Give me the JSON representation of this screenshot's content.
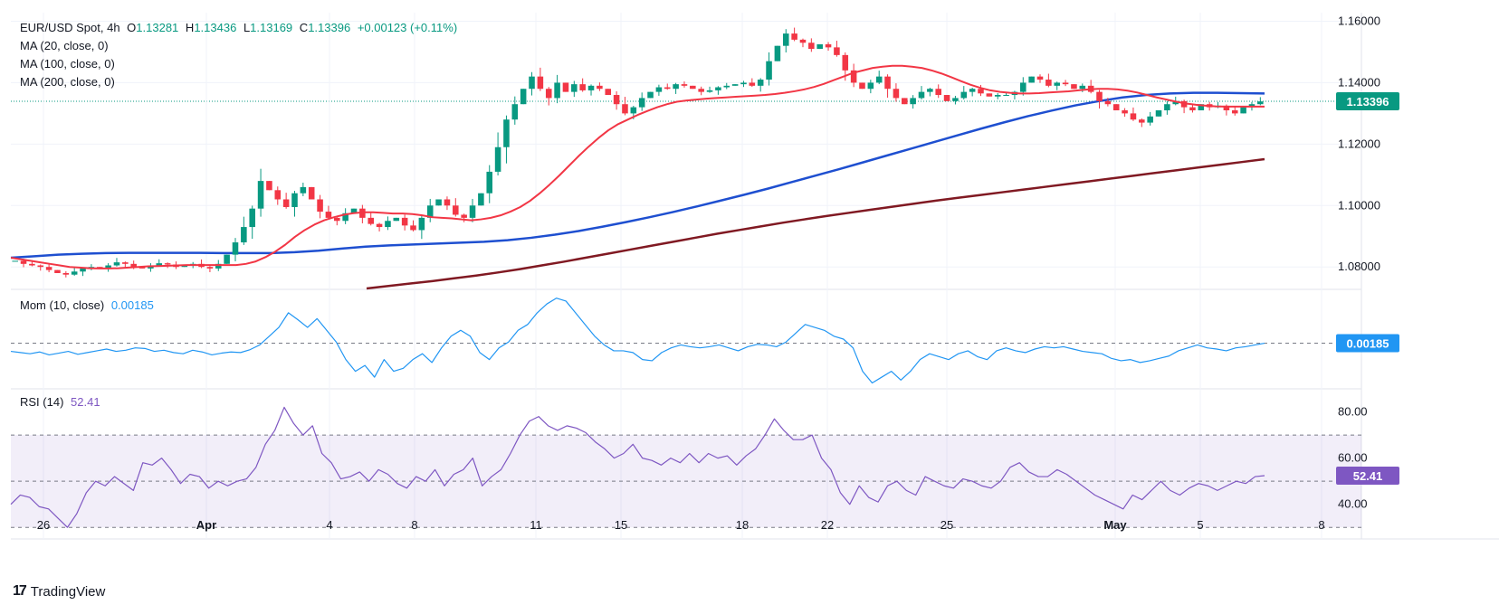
{
  "legend": {
    "symbol": "EUR/USD Spot, 4h",
    "o_label": "O",
    "o_value": "1.13281",
    "h_label": "H",
    "h_value": "1.13436",
    "l_label": "L",
    "l_value": "1.13169",
    "c_label": "C",
    "c_value": "1.13396",
    "change": "+0.00123 (+0.11%)",
    "ma20": "MA (20, close, 0)",
    "ma100": "MA (100, close, 0)",
    "ma200": "MA (200, close, 0)"
  },
  "momentum": {
    "label": "Mom (10, close)",
    "value": "0.00185"
  },
  "rsi": {
    "label": "RSI (14)",
    "value": "52.41"
  },
  "brand": {
    "name": "TradingView"
  },
  "colors": {
    "up": "#089981",
    "down": "#f23645",
    "ma20": "#f23645",
    "ma100": "#1e4fd0",
    "ma200": "#801922",
    "mom": "#2196f3",
    "rsi": "#7e57c2"
  },
  "chart_data": {
    "type": "candlestick",
    "price_axis": {
      "ticks": [
        "1.16000",
        "1.14000",
        "1.12000",
        "1.10000",
        "1.08000"
      ],
      "tick_values": [
        1.16,
        1.14,
        1.12,
        1.1,
        1.08
      ],
      "range": [
        1.0727,
        1.1628
      ],
      "current_price_label": "1.13396",
      "current_price": 1.13396
    },
    "x_axis": {
      "labels": [
        "26",
        "Apr",
        "4",
        "8",
        "11",
        "15",
        "18",
        "22",
        "25",
        "May",
        "5",
        "8"
      ]
    },
    "price_series": [
      1.082,
      1.081,
      1.0805,
      1.08,
      1.079,
      1.078,
      1.0775,
      1.0785,
      1.0795,
      1.08,
      1.0795,
      1.0805,
      1.0815,
      1.081,
      1.08,
      1.0795,
      1.0805,
      1.0812,
      1.0808,
      1.08,
      1.0805,
      1.081,
      1.08,
      1.0795,
      1.081,
      1.084,
      1.088,
      1.093,
      1.099,
      1.108,
      1.105,
      1.102,
      1.0995,
      1.104,
      1.106,
      1.102,
      1.098,
      1.096,
      1.095,
      1.0975,
      1.099,
      1.096,
      1.094,
      1.093,
      1.095,
      1.096,
      1.0935,
      1.092,
      1.096,
      1.1,
      1.102,
      1.1,
      1.097,
      1.096,
      1.1,
      1.104,
      1.111,
      1.119,
      1.128,
      1.133,
      1.138,
      1.142,
      1.138,
      1.135,
      1.14,
      1.137,
      1.1395,
      1.1375,
      1.139,
      1.138,
      1.136,
      1.133,
      1.13,
      1.132,
      1.135,
      1.137,
      1.1385,
      1.138,
      1.1395,
      1.139,
      1.138,
      1.137,
      1.1375,
      1.1385,
      1.139,
      1.1395,
      1.14,
      1.139,
      1.141,
      1.147,
      1.152,
      1.156,
      1.154,
      1.153,
      1.151,
      1.1525,
      1.1515,
      1.149,
      1.144,
      1.14,
      1.138,
      1.14,
      1.142,
      1.138,
      1.135,
      1.133,
      1.135,
      1.137,
      1.138,
      1.136,
      1.134,
      1.135,
      1.137,
      1.138,
      1.1365,
      1.1355,
      1.136,
      1.136,
      1.137,
      1.14,
      1.142,
      1.141,
      1.139,
      1.14,
      1.1395,
      1.138,
      1.139,
      1.137,
      1.134,
      1.133,
      1.131,
      1.13,
      1.128,
      1.127,
      1.129,
      1.131,
      1.133,
      1.134,
      1.132,
      1.131,
      1.133,
      1.132,
      1.1325,
      1.131,
      1.13,
      1.132,
      1.133,
      1.1339
    ],
    "ma20": [
      1.083,
      1.0825,
      1.082,
      1.0815,
      1.081,
      1.0805,
      1.08,
      1.0798,
      1.0796,
      1.0795,
      1.0795,
      1.0796,
      1.0798,
      1.08,
      1.0802,
      1.0803,
      1.0804,
      1.0805,
      1.0806,
      1.0806,
      1.0806,
      1.0806,
      1.0806,
      1.0806,
      1.081,
      1.0818,
      1.0832,
      1.085,
      1.0872,
      1.0898,
      1.092,
      1.0938,
      1.0952,
      1.0962,
      1.097,
      1.0975,
      1.0978,
      1.0978,
      1.0976,
      1.0974,
      1.0974,
      1.0972,
      1.0968,
      1.0962,
      1.096,
      1.0958,
      1.0955,
      1.0952,
      1.0955,
      1.096,
      1.0968,
      1.098,
      1.0995,
      1.1015,
      1.104,
      1.1068,
      1.1098,
      1.113,
      1.1162,
      1.1192,
      1.122,
      1.1245,
      1.1265,
      1.128,
      1.1295,
      1.1308,
      1.132,
      1.133,
      1.1338,
      1.1342,
      1.1345,
      1.1348,
      1.135,
      1.1352,
      1.1354,
      1.1356,
      1.1358,
      1.136,
      1.1363,
      1.1367,
      1.1372,
      1.1378,
      1.1386,
      1.1396,
      1.1408,
      1.142,
      1.1432,
      1.144,
      1.1448,
      1.1452,
      1.1455,
      1.1455,
      1.1452,
      1.1448,
      1.144,
      1.143,
      1.1418,
      1.1405,
      1.1393,
      1.1383,
      1.1375,
      1.137,
      1.1367,
      1.1365,
      1.1365,
      1.1366,
      1.1368,
      1.137,
      1.1372,
      1.1375,
      1.1378,
      1.138,
      1.138,
      1.1378,
      1.1374,
      1.1368,
      1.136,
      1.1352,
      1.1345,
      1.1338,
      1.1332,
      1.1328,
      1.1325,
      1.1323,
      1.1322,
      1.1322,
      1.1322,
      1.1322,
      1.1322
    ],
    "ma100": [
      1.083,
      1.0835,
      1.084,
      1.0843,
      1.0845,
      1.0846,
      1.0846,
      1.0846,
      1.0846,
      1.0845,
      1.0845,
      1.0845,
      1.0848,
      1.0853,
      1.086,
      1.0866,
      1.087,
      1.0873,
      1.0876,
      1.0879,
      1.0882,
      1.0887,
      1.0895,
      1.0905,
      1.0917,
      1.0931,
      1.0946,
      1.0962,
      1.0979,
      1.0997,
      1.1016,
      1.1035,
      1.1055,
      1.1076,
      1.1097,
      1.1118,
      1.114,
      1.1162,
      1.1184,
      1.1206,
      1.1228,
      1.125,
      1.1271,
      1.1291,
      1.1309,
      1.1326,
      1.134,
      1.1352,
      1.136,
      1.1365,
      1.1367,
      1.1367,
      1.1366,
      1.1365
    ],
    "ma200": [
      1.073,
      1.0738,
      1.0746,
      1.0754,
      1.0763,
      1.0772,
      1.0782,
      1.0793,
      1.0805,
      1.0817,
      1.083,
      1.0843,
      1.0856,
      1.0869,
      1.0882,
      1.0895,
      1.0908,
      1.092,
      1.0932,
      1.0944,
      1.0955,
      1.0966,
      1.0976,
      1.0986,
      1.0996,
      1.1006,
      1.1016,
      1.1025,
      1.1034,
      1.1043,
      1.1052,
      1.1061,
      1.107,
      1.1079,
      1.1088,
      1.1097,
      1.1106,
      1.1115,
      1.1124,
      1.1133,
      1.1142,
      1.1151
    ],
    "momentum": {
      "series": [
        0.0004,
        0.0002,
        0.0,
        0.0003,
        -0.0002,
        0.0001,
        0.0004,
        -0.0001,
        0.0002,
        0.0005,
        0.0008,
        0.0004,
        0.0006,
        0.001,
        0.0009,
        0.0004,
        0.0006,
        0.0002,
        0.0,
        0.0006,
        0.0003,
        -0.0002,
        0.0001,
        0.0003,
        0.0002,
        0.0007,
        0.0015,
        0.003,
        0.0045,
        0.007,
        0.0058,
        0.0045,
        0.006,
        0.004,
        0.002,
        -0.001,
        -0.003,
        -0.002,
        -0.004,
        -0.001,
        -0.003,
        -0.0025,
        -0.001,
        0.0,
        -0.0015,
        0.001,
        0.003,
        0.004,
        0.003,
        0.0002,
        -0.001,
        0.001,
        0.002,
        0.004,
        0.005,
        0.007,
        0.0085,
        0.0095,
        0.009,
        0.007,
        0.005,
        0.003,
        0.0015,
        0.0005,
        0.0005,
        0.0002,
        -0.001,
        -0.0012,
        0.0002,
        0.001,
        0.0015,
        0.0012,
        0.001,
        0.0012,
        0.0015,
        0.001,
        0.0005,
        0.0012,
        0.0016,
        0.0015,
        0.0012,
        0.002,
        0.0035,
        0.005,
        0.0045,
        0.004,
        0.003,
        0.0025,
        0.001,
        -0.003,
        -0.005,
        -0.004,
        -0.003,
        -0.0045,
        -0.003,
        -0.001,
        0.0,
        -0.0005,
        -0.001,
        0.0,
        0.0005,
        -0.0005,
        -0.001,
        0.0005,
        0.001,
        0.0005,
        0.0002,
        0.0008,
        0.0012,
        0.001,
        0.0012,
        0.0008,
        0.0004,
        0.0002,
        0.0,
        -0.0008,
        -0.0012,
        -0.001,
        -0.0015,
        -0.0012,
        -0.0008,
        -0.0004,
        0.0005,
        0.001,
        0.0015,
        0.001,
        0.0008,
        0.0005,
        0.001,
        0.0012,
        0.0015,
        0.0018
      ],
      "zero_line": 0.0018,
      "range": [
        -0.006,
        0.011
      ],
      "current_value": "0.00185"
    },
    "rsi": {
      "ticks": [
        "80.00",
        "60.00",
        "40.00"
      ],
      "tick_values": [
        80,
        60,
        40
      ],
      "range": [
        25,
        90
      ],
      "overbought": 70,
      "middle": 50,
      "oversold": 30,
      "series": [
        40,
        44,
        43,
        39,
        38,
        34,
        30,
        36,
        45,
        50,
        48,
        52,
        49,
        46,
        58,
        57,
        60,
        55,
        49,
        53,
        52,
        47,
        50,
        48,
        50,
        51,
        56,
        66,
        72,
        82,
        75,
        70,
        74,
        62,
        58,
        51,
        52,
        54,
        50,
        55,
        53,
        49,
        47,
        52,
        50,
        55,
        48,
        53,
        55,
        60,
        48,
        52,
        55,
        62,
        70,
        76,
        78,
        74,
        72,
        74,
        73,
        71,
        67,
        64,
        60,
        62,
        66,
        60,
        59,
        57,
        60,
        58,
        62,
        58,
        62,
        60,
        61,
        57,
        61,
        64,
        70,
        77,
        72,
        68,
        68,
        70,
        60,
        55,
        45,
        40,
        48,
        43,
        41,
        48,
        50,
        46,
        44,
        52,
        50,
        48,
        47,
        51,
        50,
        48,
        47,
        50,
        56,
        58,
        54,
        52,
        52,
        55,
        53,
        50,
        47,
        44,
        42,
        40,
        38,
        44,
        42,
        46,
        50,
        46,
        44,
        47,
        49,
        48,
        46,
        48,
        50,
        49,
        52,
        52.41
      ]
    }
  }
}
